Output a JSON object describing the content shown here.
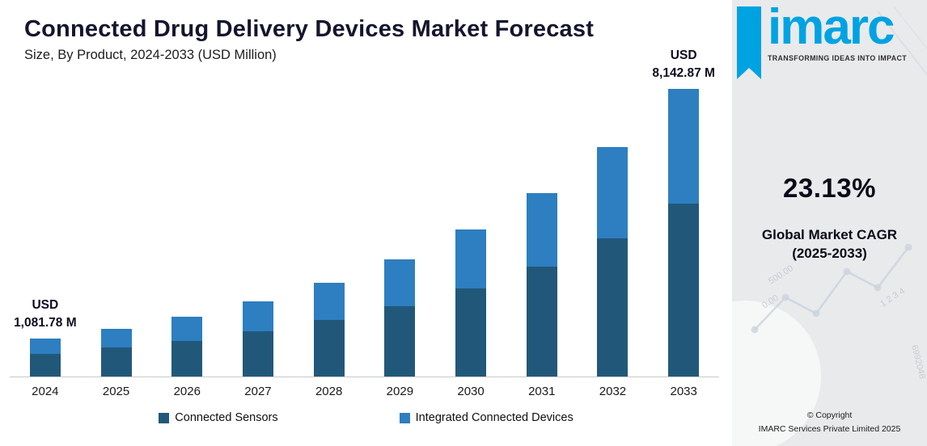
{
  "header": {
    "title": "Connected Drug Delivery Devices Market Forecast",
    "subtitle": "Size, By Product, 2024-2033 (USD Million)"
  },
  "chart_data": {
    "type": "bar",
    "stacked": true,
    "title": "Connected Drug Delivery Devices Market Forecast",
    "subtitle": "Size, By Product, 2024-2033 (USD Million)",
    "unit": "USD Million",
    "grid": false,
    "legend_position": "bottom",
    "categories": [
      "2024",
      "2025",
      "2026",
      "2027",
      "2028",
      "2029",
      "2030",
      "2031",
      "2032",
      "2033"
    ],
    "series": [
      {
        "name": "Connected Sensors",
        "color": "#21587a",
        "values": [
          649.1,
          812.2,
          1016.4,
          1272.0,
          1591.8,
          1991.9,
          2492.7,
          3119.3,
          3903.5,
          4885.7
        ]
      },
      {
        "name": "Integrated Connected Devices",
        "color": "#2d7fc1",
        "values": [
          432.7,
          541.5,
          677.7,
          848.0,
          1061.2,
          1327.9,
          1661.8,
          2079.6,
          2602.4,
          3257.2
        ]
      }
    ],
    "annotations": [
      {
        "target": "2024",
        "line1": "USD",
        "line2": "1,081.78 M"
      },
      {
        "target": "2033",
        "line1": "USD",
        "line2": "8,142.87 M"
      }
    ]
  },
  "sidebar": {
    "brand": {
      "name": "imarc",
      "tagline": "TRANSFORMING IDEAS INTO IMPACT",
      "color": "#00a3e2"
    },
    "cagr": {
      "value": "23.13%",
      "label_line1": "Global Market CAGR",
      "label_line2": "(2025-2033)"
    },
    "copyright": {
      "line1": "© Copyright",
      "line2": "IMARC Services Private Limited 2025"
    },
    "decor_numbers": {
      "n1": "500.00",
      "n2": "0.00",
      "n3": "1 2 3 4",
      "n4": "6992048"
    }
  }
}
